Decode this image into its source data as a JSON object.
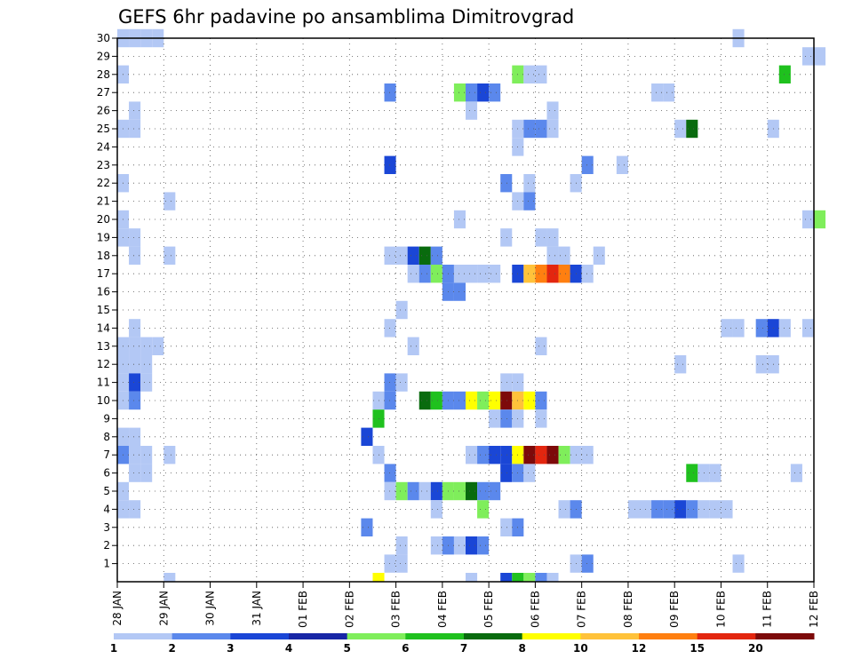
{
  "chart_data": {
    "type": "heatmap",
    "title": "GEFS 6hr padavine po ansamblima Dimitrovgrad",
    "x_tick_labels": [
      "28 JAN",
      "29 JAN",
      "30 JAN",
      "31 JAN",
      "01 FEB",
      "02 FEB",
      "03 FEB",
      "04 FEB",
      "05 FEB",
      "06 FEB",
      "07 FEB",
      "08 FEB",
      "09 FEB",
      "10 FEB",
      "11 FEB",
      "12 FEB"
    ],
    "y_tick_labels": [
      "1",
      "2",
      "3",
      "4",
      "5",
      "6",
      "7",
      "8",
      "9",
      "10",
      "11",
      "12",
      "13",
      "14",
      "15",
      "16",
      "17",
      "18",
      "19",
      "20",
      "21",
      "22",
      "23",
      "24",
      "25",
      "26",
      "27",
      "28",
      "29",
      "30"
    ],
    "x_range_steps": [
      0,
      60
    ],
    "y_range_members": [
      0,
      30
    ],
    "grid": true,
    "legend": {
      "placement": "bottom",
      "labels": [
        "1",
        "2",
        "3",
        "4",
        "5",
        "6",
        "7",
        "8",
        "10",
        "12",
        "15",
        "20"
      ],
      "colors": [
        "#b3c8f5",
        "#5b88ec",
        "#1a46d6",
        "#1826a6",
        "#7fee5b",
        "#1fc11e",
        "#096b0e",
        "#ffff00",
        "#ffc23a",
        "#ff7f10",
        "#e3260f",
        "#7d0a0a"
      ]
    },
    "class_colors": {
      "1": "#b3c8f5",
      "2": "#5b88ec",
      "3": "#1a46d6",
      "4": "#1826a6",
      "5": "#7fee5b",
      "6": "#1fc11e",
      "7": "#096b0e",
      "8": "#ffff00",
      "9": "#ffc23a",
      "10": "#ff7f10",
      "11": "#e3260f",
      "12": "#7d0a0a"
    },
    "cells_note_units": "x = 6-hour step index from 28 JAN 00Z, y = ensemble member, c = precipitation class index (1..12 matching legend bins)",
    "cells": [
      [
        0,
        30,
        1
      ],
      [
        1,
        30,
        1
      ],
      [
        2,
        30,
        1
      ],
      [
        3,
        30,
        1
      ],
      [
        53,
        30,
        1
      ],
      [
        59,
        29,
        1
      ],
      [
        60,
        29,
        1
      ],
      [
        0,
        28,
        1
      ],
      [
        34,
        28,
        5
      ],
      [
        35,
        28,
        1
      ],
      [
        36,
        28,
        1
      ],
      [
        57,
        28,
        6
      ],
      [
        23,
        27,
        2
      ],
      [
        29,
        27,
        5
      ],
      [
        30,
        27,
        2
      ],
      [
        31,
        27,
        3
      ],
      [
        32,
        27,
        2
      ],
      [
        46,
        27,
        1
      ],
      [
        47,
        27,
        1
      ],
      [
        1,
        26,
        1
      ],
      [
        30,
        26,
        1
      ],
      [
        37,
        26,
        1
      ],
      [
        0,
        25,
        1
      ],
      [
        1,
        25,
        1
      ],
      [
        34,
        25,
        1
      ],
      [
        35,
        25,
        2
      ],
      [
        36,
        25,
        2
      ],
      [
        37,
        25,
        1
      ],
      [
        48,
        25,
        1
      ],
      [
        49,
        25,
        7
      ],
      [
        56,
        25,
        1
      ],
      [
        34,
        24,
        1
      ],
      [
        23,
        23,
        3
      ],
      [
        40,
        23,
        2
      ],
      [
        43,
        23,
        1
      ],
      [
        0,
        22,
        1
      ],
      [
        33,
        22,
        2
      ],
      [
        35,
        22,
        1
      ],
      [
        39,
        22,
        1
      ],
      [
        4,
        21,
        1
      ],
      [
        34,
        21,
        1
      ],
      [
        35,
        21,
        2
      ],
      [
        0,
        20,
        1
      ],
      [
        29,
        20,
        1
      ],
      [
        59,
        20,
        1
      ],
      [
        60,
        20,
        5
      ],
      [
        0,
        19,
        1
      ],
      [
        1,
        19,
        1
      ],
      [
        33,
        19,
        1
      ],
      [
        36,
        19,
        1
      ],
      [
        37,
        19,
        1
      ],
      [
        1,
        18,
        1
      ],
      [
        4,
        18,
        1
      ],
      [
        23,
        18,
        1
      ],
      [
        24,
        18,
        1
      ],
      [
        25,
        18,
        3
      ],
      [
        26,
        18,
        7
      ],
      [
        27,
        18,
        2
      ],
      [
        37,
        18,
        1
      ],
      [
        38,
        18,
        1
      ],
      [
        41,
        18,
        1
      ],
      [
        25,
        17,
        1
      ],
      [
        26,
        17,
        2
      ],
      [
        27,
        17,
        5
      ],
      [
        28,
        17,
        2
      ],
      [
        29,
        17,
        1
      ],
      [
        30,
        17,
        1
      ],
      [
        31,
        17,
        1
      ],
      [
        32,
        17,
        1
      ],
      [
        34,
        17,
        3
      ],
      [
        35,
        17,
        9
      ],
      [
        36,
        17,
        10
      ],
      [
        37,
        17,
        11
      ],
      [
        38,
        17,
        10
      ],
      [
        39,
        17,
        3
      ],
      [
        40,
        17,
        1
      ],
      [
        28,
        16,
        2
      ],
      [
        29,
        16,
        2
      ],
      [
        24,
        15,
        1
      ],
      [
        1,
        14,
        1
      ],
      [
        23,
        14,
        1
      ],
      [
        52,
        14,
        1
      ],
      [
        53,
        14,
        1
      ],
      [
        55,
        14,
        2
      ],
      [
        56,
        14,
        3
      ],
      [
        57,
        14,
        1
      ],
      [
        59,
        14,
        1
      ],
      [
        0,
        13,
        1
      ],
      [
        1,
        13,
        1
      ],
      [
        2,
        13,
        1
      ],
      [
        3,
        13,
        1
      ],
      [
        25,
        13,
        1
      ],
      [
        36,
        13,
        1
      ],
      [
        0,
        12,
        1
      ],
      [
        1,
        12,
        1
      ],
      [
        2,
        12,
        1
      ],
      [
        48,
        12,
        1
      ],
      [
        55,
        12,
        1
      ],
      [
        56,
        12,
        1
      ],
      [
        0,
        11,
        1
      ],
      [
        1,
        11,
        3
      ],
      [
        2,
        11,
        1
      ],
      [
        33,
        11,
        1
      ],
      [
        34,
        11,
        1
      ],
      [
        23,
        11,
        2
      ],
      [
        24,
        11,
        1
      ],
      [
        22,
        10,
        1
      ],
      [
        23,
        10,
        2
      ],
      [
        26,
        10,
        7
      ],
      [
        27,
        10,
        6
      ],
      [
        28,
        10,
        2
      ],
      [
        29,
        10,
        2
      ],
      [
        30,
        10,
        8
      ],
      [
        31,
        10,
        5
      ],
      [
        32,
        10,
        8
      ],
      [
        33,
        10,
        12
      ],
      [
        34,
        10,
        9
      ],
      [
        35,
        10,
        8
      ],
      [
        36,
        10,
        2
      ],
      [
        0,
        10,
        1
      ],
      [
        1,
        10,
        2
      ],
      [
        22,
        9,
        6
      ],
      [
        32,
        9,
        1
      ],
      [
        33,
        9,
        2
      ],
      [
        34,
        9,
        1
      ],
      [
        36,
        9,
        1
      ],
      [
        21,
        8,
        3
      ],
      [
        0,
        8,
        1
      ],
      [
        1,
        8,
        1
      ],
      [
        0,
        7,
        2
      ],
      [
        1,
        7,
        1
      ],
      [
        2,
        7,
        1
      ],
      [
        4,
        7,
        1
      ],
      [
        22,
        7,
        1
      ],
      [
        30,
        7,
        1
      ],
      [
        31,
        7,
        2
      ],
      [
        32,
        7,
        3
      ],
      [
        33,
        7,
        3
      ],
      [
        34,
        7,
        8
      ],
      [
        35,
        7,
        12
      ],
      [
        36,
        7,
        11
      ],
      [
        37,
        7,
        12
      ],
      [
        38,
        7,
        5
      ],
      [
        39,
        7,
        1
      ],
      [
        40,
        7,
        1
      ],
      [
        1,
        6,
        1
      ],
      [
        2,
        6,
        1
      ],
      [
        23,
        6,
        2
      ],
      [
        33,
        6,
        3
      ],
      [
        34,
        6,
        2
      ],
      [
        35,
        6,
        1
      ],
      [
        49,
        6,
        6
      ],
      [
        50,
        6,
        1
      ],
      [
        51,
        6,
        1
      ],
      [
        58,
        6,
        1
      ],
      [
        0,
        5,
        1
      ],
      [
        23,
        5,
        1
      ],
      [
        24,
        5,
        5
      ],
      [
        25,
        5,
        2
      ],
      [
        26,
        5,
        1
      ],
      [
        27,
        5,
        3
      ],
      [
        28,
        5,
        5
      ],
      [
        29,
        5,
        5
      ],
      [
        30,
        5,
        7
      ],
      [
        31,
        5,
        2
      ],
      [
        32,
        5,
        2
      ],
      [
        0,
        4,
        1
      ],
      [
        1,
        4,
        1
      ],
      [
        27,
        4,
        1
      ],
      [
        31,
        4,
        5
      ],
      [
        38,
        4,
        1
      ],
      [
        39,
        4,
        2
      ],
      [
        44,
        4,
        1
      ],
      [
        45,
        4,
        1
      ],
      [
        46,
        4,
        2
      ],
      [
        47,
        4,
        2
      ],
      [
        48,
        4,
        3
      ],
      [
        49,
        4,
        2
      ],
      [
        50,
        4,
        1
      ],
      [
        51,
        4,
        1
      ],
      [
        52,
        4,
        1
      ],
      [
        21,
        3,
        2
      ],
      [
        33,
        3,
        1
      ],
      [
        34,
        3,
        2
      ],
      [
        24,
        2,
        1
      ],
      [
        27,
        2,
        1
      ],
      [
        28,
        2,
        2
      ],
      [
        29,
        2,
        1
      ],
      [
        30,
        2,
        3
      ],
      [
        31,
        2,
        2
      ],
      [
        23,
        1,
        1
      ],
      [
        24,
        1,
        1
      ],
      [
        39,
        1,
        1
      ],
      [
        40,
        1,
        2
      ],
      [
        53,
        1,
        1
      ],
      [
        23,
        0,
        1
      ],
      [
        24,
        0,
        1
      ]
    ],
    "bottom_row": [
      [
        4,
        1
      ],
      [
        22,
        8
      ],
      [
        30,
        1
      ],
      [
        33,
        3
      ],
      [
        34,
        6
      ],
      [
        35,
        5
      ],
      [
        36,
        2
      ],
      [
        37,
        1
      ]
    ]
  }
}
